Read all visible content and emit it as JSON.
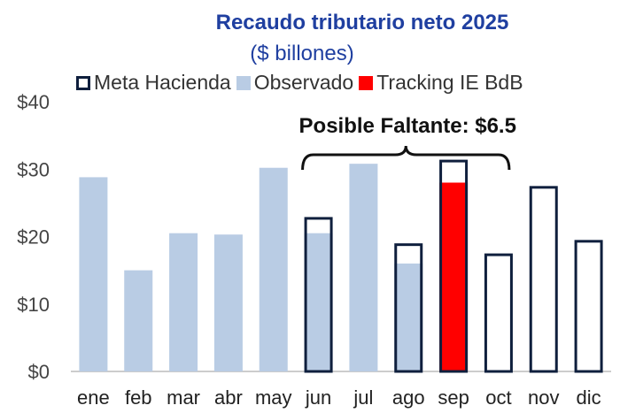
{
  "chart_data": {
    "type": "bar",
    "title": "Recaudo tributario neto 2025",
    "subtitle": "($ billones)",
    "categories": [
      "ene",
      "feb",
      "mar",
      "abr",
      "may",
      "jun",
      "jul",
      "ago",
      "sep",
      "oct",
      "nov",
      "dic"
    ],
    "series": [
      {
        "name": "Meta Hacienda",
        "values": [
          null,
          null,
          null,
          null,
          null,
          22.7,
          null,
          18.8,
          31.2,
          17.3,
          27.3,
          19.3
        ],
        "color": "#0f1f3d",
        "style": "outline"
      },
      {
        "name": "Observado",
        "values": [
          28.8,
          15.0,
          20.5,
          20.3,
          30.2,
          20.5,
          30.8,
          16.0,
          null,
          null,
          null,
          null
        ],
        "color": "#b9cce4",
        "style": "fill"
      },
      {
        "name": "Tracking IE BdB",
        "values": [
          null,
          null,
          null,
          null,
          null,
          null,
          null,
          null,
          28.0,
          null,
          null,
          null
        ],
        "color": "#ff0000",
        "style": "fill"
      }
    ],
    "ylim": [
      0,
      40
    ],
    "yticks": [
      "$0",
      "$10",
      "$20",
      "$30",
      "$40"
    ],
    "ytick_values": [
      0,
      10,
      20,
      30,
      40
    ],
    "legend_position": "top",
    "grid": false,
    "annotation": {
      "text": "Posible Faltante: $6.5",
      "span": [
        "jun",
        "oct"
      ]
    }
  }
}
